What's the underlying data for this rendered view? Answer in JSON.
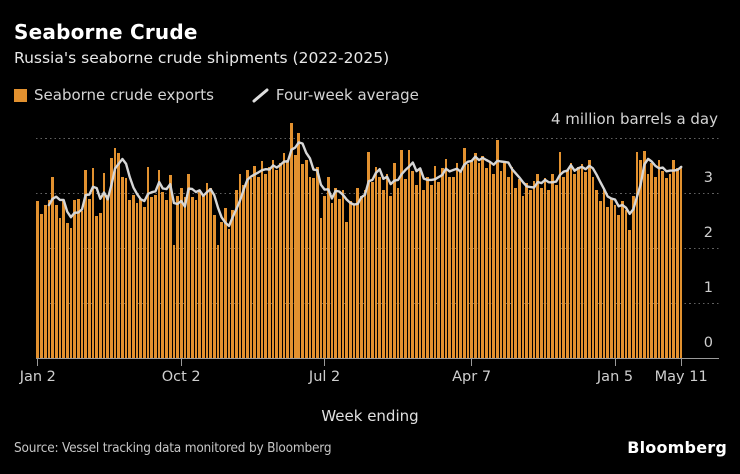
{
  "header": {
    "title": "Seaborne Crude",
    "subtitle": "Russia's seaborne crude shipments (2022-2025)"
  },
  "legend": {
    "exports_label": "Seaborne crude exports",
    "average_label": "Four-week average"
  },
  "annotation": "4 million barrels a day",
  "axis": {
    "x_title": "Week ending"
  },
  "footer": {
    "source": "Source: Vessel tracking data monitored by Bloomberg",
    "logo": "Bloomberg"
  },
  "colors": {
    "background": "#000000",
    "bar": "#E2912F",
    "line": "#D6D6D6",
    "grid": "#616161",
    "axis": "#9A9A9A",
    "text_primary": "#FFFFFF",
    "text_secondary": "#D4D4D4"
  },
  "chart_data": {
    "type": "bar",
    "title": "Seaborne Crude",
    "subtitle": "Russia's seaborne crude shipments (2022-2025)",
    "xlabel": "Week ending",
    "ylabel": "million barrels a day",
    "unit": "million barrels a day",
    "ylim": [
      0,
      4.36
    ],
    "y_ticks": [
      0,
      1,
      2,
      3
    ],
    "y_top_annotation": "4 million barrels a day",
    "grid": "dotted horizontal",
    "legend_position": "top-left",
    "x_ticks": [
      {
        "label": "Jan 2",
        "index": 0
      },
      {
        "label": "Oct 2",
        "index": 39
      },
      {
        "label": "Jul 2",
        "index": 78
      },
      {
        "label": "Apr 7",
        "index": 118
      },
      {
        "label": "Jan 5",
        "index": 157
      },
      {
        "label": "May 11",
        "index": 175
      }
    ],
    "x_range": "weekly, Jan 2 2022 through May 11 2025",
    "series": [
      {
        "name": "Seaborne crude exports",
        "type": "bar",
        "values": [
          2.85,
          2.62,
          2.78,
          2.87,
          3.3,
          2.78,
          2.55,
          2.87,
          2.45,
          2.37,
          2.87,
          2.89,
          2.68,
          3.41,
          2.9,
          3.46,
          2.59,
          2.63,
          3.36,
          2.96,
          3.63,
          3.82,
          3.72,
          3.3,
          3.28,
          2.87,
          2.96,
          2.81,
          2.9,
          2.75,
          3.48,
          2.93,
          2.96,
          3.42,
          3.02,
          2.88,
          3.32,
          2.05,
          2.95,
          3.1,
          2.92,
          3.35,
          2.92,
          2.88,
          3.05,
          2.95,
          3.18,
          3.1,
          2.6,
          2.05,
          2.48,
          2.72,
          2.35,
          2.7,
          3.05,
          3.35,
          3.15,
          3.42,
          3.28,
          3.5,
          3.3,
          3.58,
          3.35,
          3.48,
          3.6,
          3.42,
          3.55,
          3.72,
          3.6,
          4.28,
          3.7,
          4.1,
          3.52,
          3.6,
          3.3,
          3.28,
          3.48,
          2.54,
          2.95,
          3.3,
          2.81,
          3.1,
          2.9,
          3.05,
          2.48,
          2.85,
          2.78,
          3.1,
          2.95,
          3.05,
          3.75,
          3.2,
          3.48,
          3.3,
          3.05,
          3.35,
          2.95,
          3.55,
          3.1,
          3.78,
          3.25,
          3.79,
          3.4,
          3.15,
          3.45,
          3.05,
          3.3,
          3.15,
          3.5,
          3.2,
          3.45,
          3.62,
          3.3,
          3.3,
          3.55,
          3.4,
          3.81,
          3.52,
          3.6,
          3.72,
          3.55,
          3.68,
          3.45,
          3.58,
          3.35,
          3.96,
          3.4,
          3.55,
          3.3,
          3.48,
          3.1,
          3.25,
          2.95,
          3.18,
          3.05,
          3.22,
          3.35,
          3.1,
          3.28,
          3.05,
          3.35,
          3.15,
          3.75,
          3.3,
          3.42,
          3.55,
          3.35,
          3.48,
          3.52,
          3.38,
          3.6,
          3.3,
          3.05,
          2.85,
          3.1,
          2.75,
          2.9,
          2.78,
          2.6,
          2.85,
          2.7,
          2.33,
          2.95,
          3.75,
          3.61,
          3.77,
          3.35,
          3.55,
          3.3,
          3.6,
          3.4,
          3.28,
          3.35,
          3.6,
          3.45,
          3.5
        ]
      },
      {
        "name": "Four-week average",
        "type": "line",
        "derived_from": "Seaborne crude exports",
        "window": 4
      }
    ]
  }
}
